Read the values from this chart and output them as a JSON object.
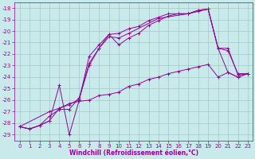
{
  "title": "",
  "xlabel": "Windchill (Refroidissement éolien,°C)",
  "ylabel": "",
  "bg_color": "#c8eaea",
  "grid_color": "#a0c8c8",
  "line_color": "#990099",
  "marker": "+",
  "xlim": [
    -0.5,
    23.5
  ],
  "ylim": [
    -29.5,
    -17.5
  ],
  "yticks": [
    -29,
    -28,
    -27,
    -26,
    -25,
    -24,
    -23,
    -22,
    -21,
    -20,
    -19,
    -18
  ],
  "xticks": [
    0,
    1,
    2,
    3,
    4,
    5,
    6,
    7,
    8,
    9,
    10,
    11,
    12,
    13,
    14,
    15,
    16,
    17,
    18,
    19,
    20,
    21,
    22,
    23
  ],
  "tick_fontsize": 5,
  "xlabel_fontsize": 5.5,
  "lines": [
    {
      "x": [
        0,
        1,
        2,
        3,
        4,
        5,
        6,
        7,
        8,
        9,
        10,
        11,
        12,
        13,
        14,
        15,
        16,
        17,
        18,
        19,
        20,
        21,
        22,
        23
      ],
      "y": [
        -28.3,
        -28.5,
        -28.2,
        -27.8,
        -24.7,
        -29.0,
        -26.0,
        -22.2,
        -21.2,
        -20.3,
        -21.2,
        -20.6,
        -20.2,
        -19.5,
        -19.1,
        -18.7,
        -18.5,
        -18.5,
        -18.2,
        -18.1,
        -21.5,
        -23.6,
        -24.0,
        -23.7
      ]
    },
    {
      "x": [
        0,
        1,
        2,
        3,
        4,
        5,
        6,
        7,
        8,
        9,
        10,
        11,
        12,
        13,
        14,
        15,
        16,
        17,
        18,
        19,
        20,
        21,
        22,
        23
      ],
      "y": [
        -28.3,
        -28.5,
        -28.2,
        -27.8,
        -26.7,
        -26.3,
        -26.1,
        -26.0,
        -25.6,
        -25.5,
        -25.3,
        -24.8,
        -24.6,
        -24.2,
        -24.0,
        -23.7,
        -23.5,
        -23.3,
        -23.1,
        -22.9,
        -24.0,
        -23.6,
        -24.0,
        -23.7
      ]
    },
    {
      "x": [
        0,
        1,
        2,
        3,
        4,
        5,
        6,
        7,
        8,
        9,
        10,
        11,
        12,
        13,
        14,
        15,
        16,
        17,
        18,
        19,
        20,
        21,
        22,
        23
      ],
      "y": [
        -28.3,
        -28.5,
        -28.2,
        -27.4,
        -26.8,
        -26.8,
        -25.8,
        -22.8,
        -21.5,
        -20.3,
        -20.2,
        -19.8,
        -19.6,
        -19.1,
        -18.8,
        -18.5,
        -18.5,
        -18.5,
        -18.3,
        -18.1,
        -21.5,
        -21.7,
        -23.7,
        -23.7
      ]
    },
    {
      "x": [
        0,
        3,
        5,
        6,
        7,
        8,
        9,
        10,
        11,
        14,
        17,
        18,
        19,
        20,
        21,
        22,
        23
      ],
      "y": [
        -28.3,
        -27.0,
        -26.4,
        -25.9,
        -23.0,
        -21.5,
        -20.5,
        -20.6,
        -20.2,
        -18.9,
        -18.5,
        -18.2,
        -18.1,
        -21.5,
        -21.5,
        -23.8,
        -23.7
      ]
    }
  ]
}
